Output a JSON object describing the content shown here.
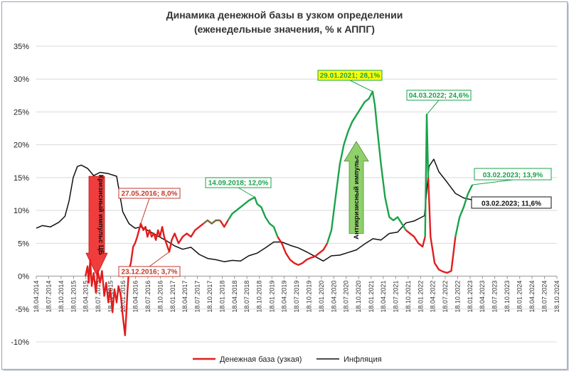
{
  "chart_data": {
    "type": "line",
    "title": "Динамика денежной базы в узком определении",
    "subtitle": "(еженедельные значения, % к АППГ)",
    "ylim": [
      -10,
      35
    ],
    "y_ticks": [
      "-10%",
      "-5%",
      "0%",
      "5%",
      "10%",
      "15%",
      "20%",
      "25%",
      "30%",
      "35%"
    ],
    "y_tick_values": [
      -10,
      -5,
      0,
      5,
      10,
      15,
      20,
      25,
      30,
      35
    ],
    "x_range": [
      "2014-04-18",
      "2024-10-18"
    ],
    "x_ticks": [
      "18.04.2014",
      "18.07.2014",
      "18.10.2014",
      "18.01.2015",
      "18.04.2015",
      "18.07.2015",
      "18.10.2015",
      "18.01.2016",
      "18.04.2016",
      "18.07.2016",
      "18.10.2016",
      "18.01.2017",
      "18.04.2017",
      "18.07.2017",
      "18.10.2017",
      "18.01.2018",
      "18.04.2018",
      "18.07.2018",
      "18.10.2018",
      "18.01.2019",
      "18.04.2019",
      "18.07.2019",
      "18.10.2019",
      "18.01.2020",
      "18.04.2020",
      "18.07.2020",
      "18.10.2020",
      "18.01.2021",
      "18.04.2021",
      "18.07.2021",
      "18.10.2021",
      "18.01.2022",
      "18.04.2022",
      "18.07.2022",
      "18.10.2022",
      "18.01.2023",
      "18.04.2023",
      "18.07.2023",
      "18.10.2023",
      "18.01.2024",
      "18.04.2024",
      "18.07.2024",
      "18.10.2024"
    ],
    "legend": [
      "Денежная база (узкая)",
      "Инфляция"
    ],
    "series": [
      {
        "name": "Денежная база (узкая)",
        "color_crisis": "#e21d1d",
        "color_anticrisis": "#1aa34a",
        "points": [
          [
            "2015-04-15",
            0
          ],
          [
            "2015-05-01",
            1.5
          ],
          [
            "2015-05-10",
            -1
          ],
          [
            "2015-05-20",
            2.5
          ],
          [
            "2015-06-01",
            -1.5
          ],
          [
            "2015-06-15",
            0.5
          ],
          [
            "2015-07-01",
            -2.5
          ],
          [
            "2015-07-15",
            0.8
          ],
          [
            "2015-08-01",
            -1
          ],
          [
            "2015-08-15",
            0.8
          ],
          [
            "2015-09-01",
            -3
          ],
          [
            "2015-09-15",
            -1
          ],
          [
            "2015-10-01",
            -4
          ],
          [
            "2015-10-15",
            -2
          ],
          [
            "2015-11-01",
            -5.5
          ],
          [
            "2015-11-15",
            -2
          ],
          [
            "2015-12-01",
            -4
          ],
          [
            "2015-12-15",
            -1.5
          ],
          [
            "2016-01-01",
            -3
          ],
          [
            "2016-01-15",
            -6
          ],
          [
            "2016-02-01",
            -9
          ],
          [
            "2016-02-10",
            -6
          ],
          [
            "2016-02-20",
            -2
          ],
          [
            "2016-03-01",
            1
          ],
          [
            "2016-03-15",
            2
          ],
          [
            "2016-04-01",
            4.5
          ],
          [
            "2016-04-15",
            5
          ],
          [
            "2016-05-01",
            6
          ],
          [
            "2016-05-27",
            8.0
          ],
          [
            "2016-06-15",
            7
          ],
          [
            "2016-07-01",
            7.5
          ],
          [
            "2016-07-15",
            6
          ],
          [
            "2016-08-01",
            7
          ],
          [
            "2016-08-15",
            6
          ],
          [
            "2016-09-01",
            6.5
          ],
          [
            "2016-09-15",
            5.5
          ],
          [
            "2016-10-01",
            7
          ],
          [
            "2016-10-15",
            6
          ],
          [
            "2016-11-01",
            7.5
          ],
          [
            "2016-11-15",
            6
          ],
          [
            "2016-12-01",
            5
          ],
          [
            "2016-12-23",
            3.7
          ],
          [
            "2017-01-10",
            5.5
          ],
          [
            "2017-02-01",
            6.5
          ],
          [
            "2017-03-01",
            5
          ],
          [
            "2017-04-01",
            6
          ],
          [
            "2017-05-01",
            6.5
          ],
          [
            "2017-06-01",
            6
          ],
          [
            "2017-07-01",
            7
          ],
          [
            "2017-08-01",
            7.5
          ],
          [
            "2017-09-01",
            8
          ],
          [
            "2017-10-01",
            8.5
          ],
          [
            "2017-11-01",
            8
          ],
          [
            "2017-12-01",
            8.5
          ],
          [
            "2018-01-01",
            8.5
          ],
          [
            "2018-02-01",
            7.5
          ],
          [
            "2018-03-01",
            8.5
          ],
          [
            "2018-04-01",
            9.5
          ],
          [
            "2018-05-01",
            10
          ],
          [
            "2018-06-01",
            10.5
          ],
          [
            "2018-07-01",
            11
          ],
          [
            "2018-08-01",
            11.5
          ],
          [
            "2018-09-14",
            12.0
          ],
          [
            "2018-10-01",
            11
          ],
          [
            "2018-11-01",
            10.5
          ],
          [
            "2018-12-01",
            9
          ],
          [
            "2019-01-01",
            8
          ],
          [
            "2019-02-01",
            7.5
          ],
          [
            "2019-03-01",
            6
          ],
          [
            "2019-04-01",
            5
          ],
          [
            "2019-05-01",
            3.5
          ],
          [
            "2019-06-01",
            2.5
          ],
          [
            "2019-07-01",
            2
          ],
          [
            "2019-08-01",
            1.7
          ],
          [
            "2019-09-01",
            2
          ],
          [
            "2019-10-01",
            2.5
          ],
          [
            "2019-11-01",
            2.8
          ],
          [
            "2019-12-01",
            3
          ],
          [
            "2020-01-01",
            3.5
          ],
          [
            "2020-02-01",
            4
          ],
          [
            "2020-03-01",
            5
          ],
          [
            "2020-04-01",
            7
          ],
          [
            "2020-05-01",
            12
          ],
          [
            "2020-06-01",
            17
          ],
          [
            "2020-07-01",
            20
          ],
          [
            "2020-08-01",
            22
          ],
          [
            "2020-09-01",
            23.5
          ],
          [
            "2020-10-01",
            24.5
          ],
          [
            "2020-11-01",
            25.5
          ],
          [
            "2020-12-01",
            26.5
          ],
          [
            "2021-01-01",
            27
          ],
          [
            "2021-01-29",
            28.1
          ],
          [
            "2021-02-15",
            26
          ],
          [
            "2021-03-01",
            23
          ],
          [
            "2021-04-01",
            17
          ],
          [
            "2021-05-01",
            12
          ],
          [
            "2021-06-01",
            9
          ],
          [
            "2021-07-01",
            8.5
          ],
          [
            "2021-08-01",
            9
          ],
          [
            "2021-09-01",
            8
          ],
          [
            "2021-10-01",
            7
          ],
          [
            "2021-11-01",
            6.5
          ],
          [
            "2021-12-01",
            6
          ],
          [
            "2022-01-01",
            5
          ],
          [
            "2022-02-01",
            4.5
          ],
          [
            "2022-02-20",
            6
          ],
          [
            "2022-03-04",
            24.6
          ],
          [
            "2022-03-15",
            15
          ],
          [
            "2022-04-01",
            6
          ],
          [
            "2022-05-01",
            2
          ],
          [
            "2022-06-01",
            1
          ],
          [
            "2022-07-01",
            0.7
          ],
          [
            "2022-08-01",
            0.5
          ],
          [
            "2022-09-01",
            0.8
          ],
          [
            "2022-10-01",
            6
          ],
          [
            "2022-11-01",
            9
          ],
          [
            "2022-12-01",
            10.5
          ],
          [
            "2023-01-01",
            12.5
          ],
          [
            "2023-02-03",
            13.9
          ]
        ]
      },
      {
        "name": "Инфляция",
        "color": "#111111",
        "points": [
          [
            "2014-04-18",
            7.3
          ],
          [
            "2014-06-01",
            7.7
          ],
          [
            "2014-08-01",
            7.5
          ],
          [
            "2014-10-01",
            8.2
          ],
          [
            "2014-11-15",
            9.1
          ],
          [
            "2014-12-15",
            11.4
          ],
          [
            "2015-01-15",
            15
          ],
          [
            "2015-02-15",
            16.7
          ],
          [
            "2015-03-15",
            16.9
          ],
          [
            "2015-05-01",
            16.4
          ],
          [
            "2015-06-15",
            15.3
          ],
          [
            "2015-08-01",
            15.8
          ],
          [
            "2015-10-01",
            15.6
          ],
          [
            "2015-12-01",
            15.2
          ],
          [
            "2016-01-15",
            9.8
          ],
          [
            "2016-03-01",
            8
          ],
          [
            "2016-04-15",
            7.3
          ],
          [
            "2016-06-01",
            7.5
          ],
          [
            "2016-08-01",
            6.8
          ],
          [
            "2016-10-01",
            6.1
          ],
          [
            "2016-12-01",
            5.4
          ],
          [
            "2017-02-01",
            4.6
          ],
          [
            "2017-04-01",
            4.1
          ],
          [
            "2017-06-01",
            4.4
          ],
          [
            "2017-08-01",
            3.3
          ],
          [
            "2017-10-01",
            2.7
          ],
          [
            "2017-12-01",
            2.5
          ],
          [
            "2018-02-01",
            2.2
          ],
          [
            "2018-04-01",
            2.4
          ],
          [
            "2018-06-01",
            2.3
          ],
          [
            "2018-08-01",
            3.1
          ],
          [
            "2018-10-01",
            3.5
          ],
          [
            "2018-12-01",
            4.3
          ],
          [
            "2019-02-01",
            5.2
          ],
          [
            "2019-04-01",
            5.2
          ],
          [
            "2019-06-01",
            4.7
          ],
          [
            "2019-08-01",
            4.3
          ],
          [
            "2019-10-01",
            3.7
          ],
          [
            "2019-12-01",
            3
          ],
          [
            "2020-02-01",
            2.3
          ],
          [
            "2020-04-01",
            3.1
          ],
          [
            "2020-06-01",
            3.2
          ],
          [
            "2020-08-01",
            3.6
          ],
          [
            "2020-10-01",
            4
          ],
          [
            "2020-12-01",
            4.9
          ],
          [
            "2021-02-01",
            5.7
          ],
          [
            "2021-04-01",
            5.5
          ],
          [
            "2021-06-01",
            6.5
          ],
          [
            "2021-08-01",
            6.7
          ],
          [
            "2021-10-01",
            8.1
          ],
          [
            "2021-12-01",
            8.4
          ],
          [
            "2022-02-15",
            9.2
          ],
          [
            "2022-03-20",
            16.7
          ],
          [
            "2022-04-25",
            17.8
          ],
          [
            "2022-06-01",
            15.9
          ],
          [
            "2022-08-01",
            14.3
          ],
          [
            "2022-10-01",
            12.6
          ],
          [
            "2022-12-01",
            11.9
          ],
          [
            "2023-02-03",
            11.6
          ]
        ]
      }
    ],
    "annotations": [
      {
        "text": "27.05.2016; 8,0%",
        "date": "2016-05-27",
        "value": 8.0,
        "color": "#c0392b",
        "fill": "#ffffff"
      },
      {
        "text": "23.12.2016; 3,7%",
        "date": "2016-12-23",
        "value": 3.7,
        "color": "#c0392b",
        "fill": "#ffffff"
      },
      {
        "text": "14.09.2018; 12,0%",
        "date": "2018-09-14",
        "value": 12.0,
        "color": "#1aa34a",
        "fill": "#ffffff"
      },
      {
        "text": "29.01.2021; 28,1%",
        "date": "2021-01-29",
        "value": 28.1,
        "color": "#1aa34a",
        "fill": "#ffff00"
      },
      {
        "text": "04.03.2022; 24,6%",
        "date": "2022-03-04",
        "value": 24.6,
        "color": "#1aa34a",
        "fill": "#ffffff"
      },
      {
        "text": "03.02.2023; 13,9%",
        "date": "2023-02-03",
        "value": 13.9,
        "color": "#1aa34a",
        "fill": "#ffffff"
      },
      {
        "text": "03.02.2023; 11,6%",
        "date": "2023-02-03",
        "value": 11.6,
        "color": "#111111",
        "fill": "#ffffff"
      }
    ],
    "arrows": [
      {
        "label": "Кризисный импульс ЦБ",
        "direction": "down",
        "color": "#f03c3c"
      },
      {
        "label": "Антикризисный импульс",
        "direction": "up",
        "color": "#8fd06a"
      }
    ]
  }
}
